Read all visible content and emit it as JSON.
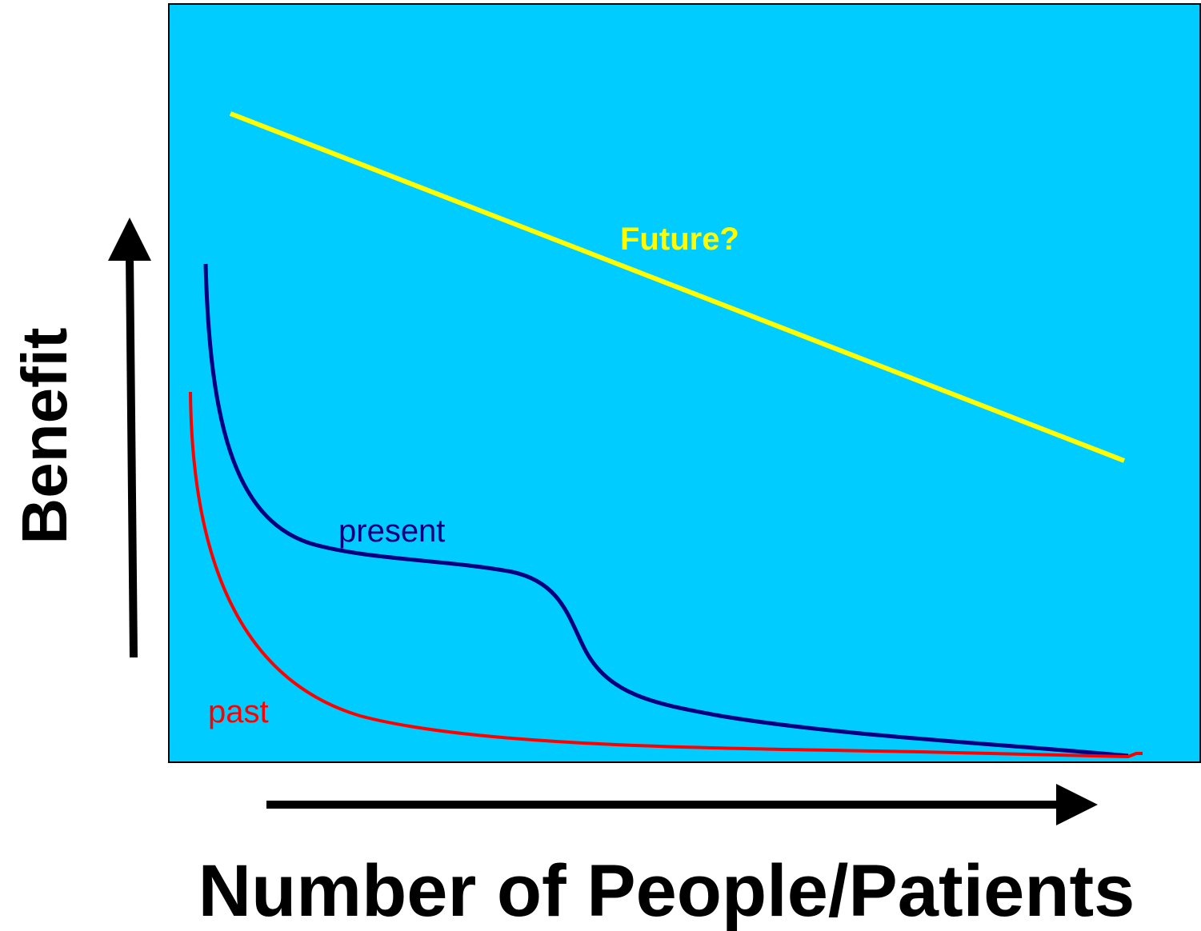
{
  "y_axis_label": "Benefit",
  "x_axis_label": "Number of People/Patients",
  "curves": [
    {
      "label": "Future?"
    },
    {
      "label": "present"
    },
    {
      "label": "past"
    }
  ]
}
